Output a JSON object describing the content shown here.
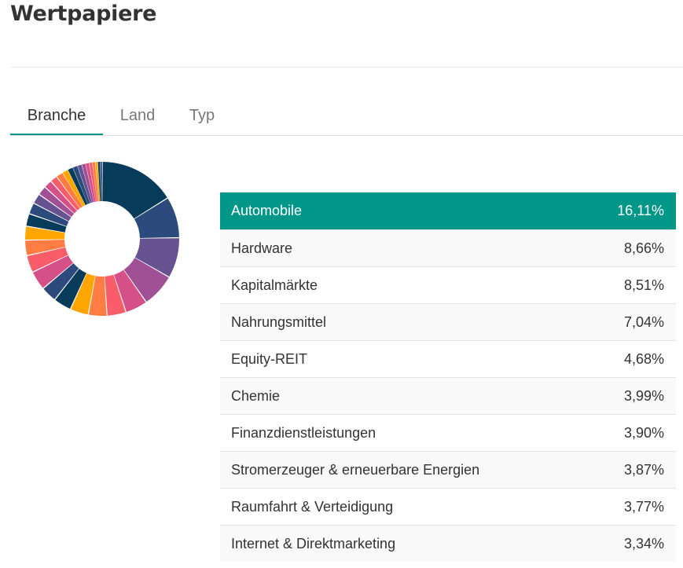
{
  "page": {
    "title": "Wertpapiere"
  },
  "tabs": [
    {
      "label": "Branche",
      "active": true
    },
    {
      "label": "Land",
      "active": false
    },
    {
      "label": "Typ",
      "active": false
    }
  ],
  "colors": {
    "accent": "#009688",
    "segments": [
      "#073b5a",
      "#2c4b7c",
      "#665191",
      "#a05195",
      "#d45087",
      "#f95d6a",
      "#ff7c43",
      "#ffa600"
    ]
  },
  "chart_data": {
    "type": "pie",
    "variant": "donut",
    "categories": [
      "Automobile",
      "Hardware",
      "Kapitalmärkte",
      "Nahrungsmittel",
      "Equity-REIT",
      "Chemie",
      "Finanzdienstleistungen",
      "Stromerzeuger & erneuerbare Energien",
      "Raumfahrt & Verteidigung",
      "Internet & Direktmarketing"
    ],
    "values": [
      16.11,
      8.66,
      8.51,
      7.04,
      4.68,
      3.99,
      3.9,
      3.87,
      3.77,
      3.34
    ],
    "other_segment_count": 22
  },
  "table": {
    "rows": [
      {
        "name": "Automobile",
        "percent": "16,11%",
        "selected": true
      },
      {
        "name": "Hardware",
        "percent": "8,66%"
      },
      {
        "name": "Kapitalmärkte",
        "percent": "8,51%"
      },
      {
        "name": "Nahrungsmittel",
        "percent": "7,04%"
      },
      {
        "name": "Equity-REIT",
        "percent": "4,68%"
      },
      {
        "name": "Chemie",
        "percent": "3,99%"
      },
      {
        "name": "Finanzdienstleistungen",
        "percent": "3,90%"
      },
      {
        "name": "Stromerzeuger & erneuerbare Energien",
        "percent": "3,87%"
      },
      {
        "name": "Raumfahrt & Verteidigung",
        "percent": "3,77%"
      },
      {
        "name": "Internet & Direktmarketing",
        "percent": "3,34%"
      }
    ]
  }
}
